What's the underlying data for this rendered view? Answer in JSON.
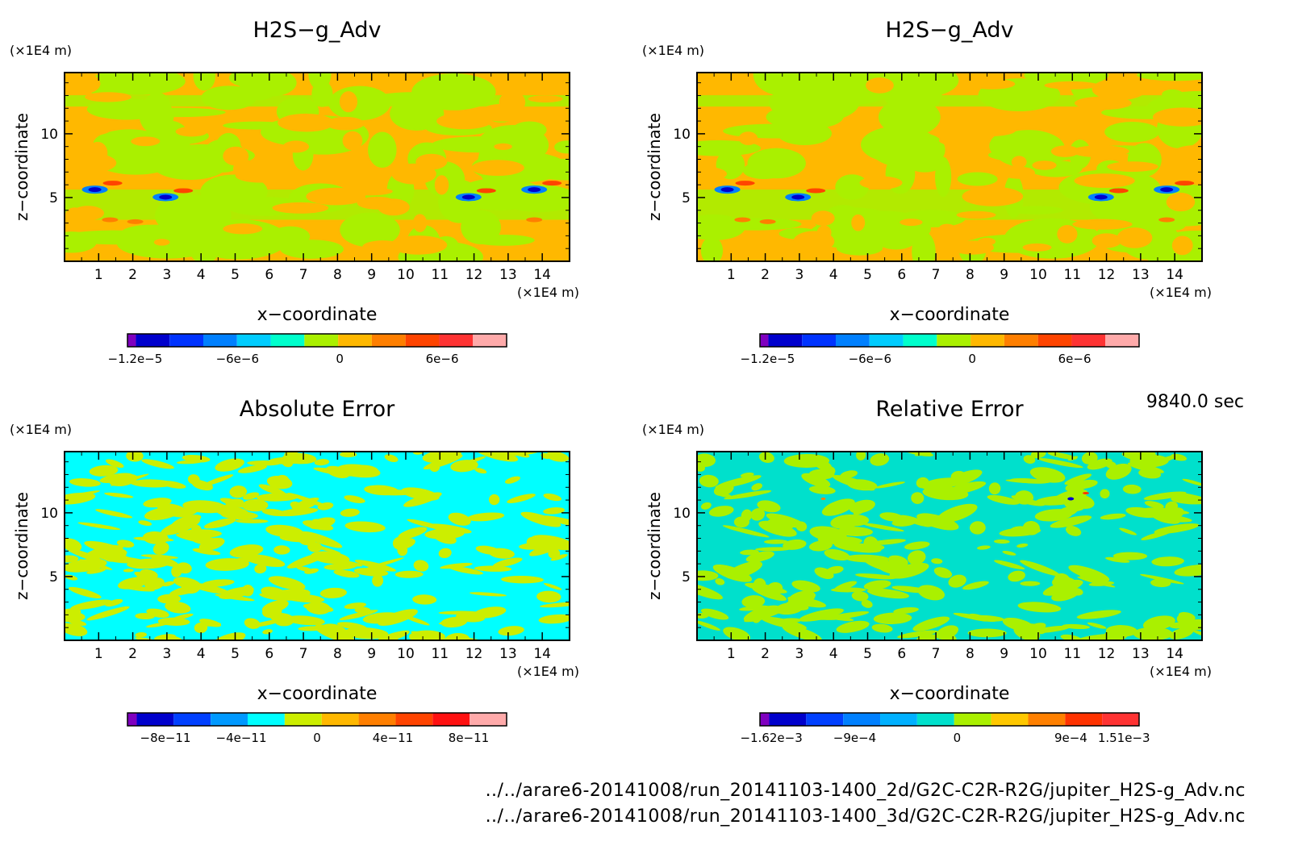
{
  "timestamp": "9840.0 sec",
  "paths": [
    "../../arare6-20141008/run_20141103-1400_2d/G2C-C2R-R2G/jupiter_H2S-g_Adv.nc",
    "../../arare6-20141008/run_20141103-1400_3d/G2C-C2R-R2G/jupiter_H2S-g_Adv.nc"
  ],
  "chart_data": [
    {
      "type": "heatmap",
      "title": "H2S−g_Adv",
      "xlabel": "x−coordinate",
      "ylabel": "z−coordinate",
      "x_unit": "(×1E4 m)",
      "y_unit": "(×1E4 m)",
      "xticks": [
        "1",
        "2",
        "3",
        "4",
        "5",
        "6",
        "7",
        "8",
        "9",
        "10",
        "11",
        "12",
        "13",
        "14"
      ],
      "yticks": [
        "5",
        "10"
      ],
      "xlim": [
        0,
        14.8
      ],
      "ylim": [
        0,
        14.8
      ],
      "colorbar_labels": [
        "−1.2e−5",
        "−6e−6",
        "0",
        "6e−6"
      ],
      "colors": [
        "#7f00bf",
        "#0000cc",
        "#0033ff",
        "#0080ff",
        "#00ccff",
        "#00ffcc",
        "#aaf000",
        "#ffb800",
        "#ff7f00",
        "#ff4400",
        "#ff3333",
        "#ffaaaa"
      ]
    },
    {
      "type": "heatmap",
      "title": "H2S−g_Adv",
      "xlabel": "x−coordinate",
      "ylabel": "z−coordinate",
      "x_unit": "(×1E4 m)",
      "y_unit": "(×1E4 m)",
      "xticks": [
        "1",
        "2",
        "3",
        "4",
        "5",
        "6",
        "7",
        "8",
        "9",
        "10",
        "11",
        "12",
        "13",
        "14"
      ],
      "yticks": [
        "5",
        "10"
      ],
      "xlim": [
        0,
        14.8
      ],
      "ylim": [
        0,
        14.8
      ],
      "colorbar_labels": [
        "−1.2e−5",
        "−6e−6",
        "0",
        "6e−6"
      ],
      "colors": [
        "#7f00bf",
        "#0000cc",
        "#0033ff",
        "#0080ff",
        "#00ccff",
        "#00ffcc",
        "#aaf000",
        "#ffb800",
        "#ff7f00",
        "#ff4400",
        "#ff3333",
        "#ffaaaa"
      ]
    },
    {
      "type": "heatmap",
      "title": "Absolute Error",
      "xlabel": "x−coordinate",
      "ylabel": "z−coordinate",
      "x_unit": "(×1E4 m)",
      "y_unit": "(×1E4 m)",
      "xticks": [
        "1",
        "2",
        "3",
        "4",
        "5",
        "6",
        "7",
        "8",
        "9",
        "10",
        "11",
        "12",
        "13",
        "14"
      ],
      "yticks": [
        "5",
        "10"
      ],
      "xlim": [
        0,
        14.8
      ],
      "ylim": [
        0,
        14.8
      ],
      "colorbar_labels": [
        "−8e−11",
        "−4e−11",
        "0",
        "4e−11",
        "8e−11"
      ],
      "colors": [
        "#7f00bf",
        "#0000cc",
        "#0040ff",
        "#0099ff",
        "#00ffff",
        "#ccee00",
        "#ffb800",
        "#ff7f00",
        "#ff4400",
        "#ff1111",
        "#ffaaaa"
      ]
    },
    {
      "type": "heatmap",
      "title": "Relative Error",
      "xlabel": "x−coordinate",
      "ylabel": "z−coordinate",
      "x_unit": "(×1E4 m)",
      "y_unit": "(×1E4 m)",
      "xticks": [
        "1",
        "2",
        "3",
        "4",
        "5",
        "6",
        "7",
        "8",
        "9",
        "10",
        "11",
        "12",
        "13",
        "14"
      ],
      "yticks": [
        "5",
        "10"
      ],
      "xlim": [
        0,
        14.8
      ],
      "ylim": [
        0,
        14.8
      ],
      "colorbar_labels": [
        "−1.62e−3",
        "−9e−4",
        "0",
        "9e−4",
        "1.51e−3"
      ],
      "colors": [
        "#7f00bf",
        "#0000cc",
        "#0040ff",
        "#0080ff",
        "#00b0ff",
        "#00e0cc",
        "#aaf000",
        "#ffc800",
        "#ff8000",
        "#ff3300",
        "#ff3333"
      ]
    }
  ]
}
